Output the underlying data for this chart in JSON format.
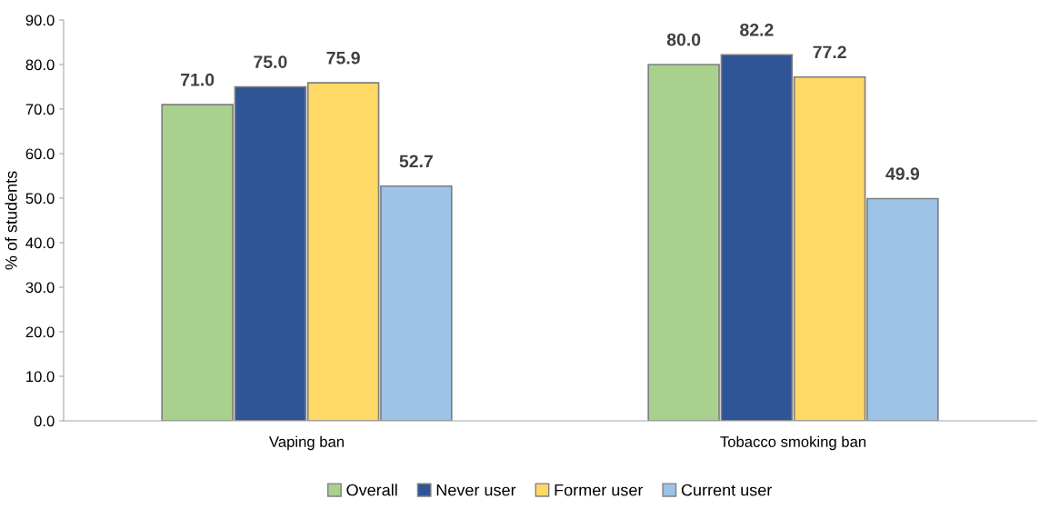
{
  "chart_data": {
    "type": "bar",
    "ylabel": "% of students",
    "categories": [
      "Vaping ban",
      "Tobacco smoking ban"
    ],
    "series": [
      {
        "name": "Overall",
        "color": "#a9d18e",
        "values": [
          71.0,
          80.0
        ],
        "value_labels": [
          "71.0",
          "80.0"
        ]
      },
      {
        "name": "Never user",
        "color": "#2f5597",
        "values": [
          75.0,
          82.2
        ],
        "value_labels": [
          "75.0",
          "82.2"
        ]
      },
      {
        "name": "Former user",
        "color": "#ffd966",
        "values": [
          75.9,
          77.2
        ],
        "value_labels": [
          "75.9",
          "77.2"
        ]
      },
      {
        "name": "Current user",
        "color": "#9dc3e6",
        "values": [
          52.7,
          49.9
        ],
        "value_labels": [
          "52.7",
          "49.9"
        ]
      }
    ],
    "ylim": [
      0,
      90
    ],
    "yticks": [
      {
        "value": 0,
        "label": "0.0"
      },
      {
        "value": 10,
        "label": "10.0"
      },
      {
        "value": 20,
        "label": "20.0"
      },
      {
        "value": 30,
        "label": "30.0"
      },
      {
        "value": 40,
        "label": "40.0"
      },
      {
        "value": 50,
        "label": "50.0"
      },
      {
        "value": 60,
        "label": "60.0"
      },
      {
        "value": 70,
        "label": "70.0"
      },
      {
        "value": 80,
        "label": "80.0"
      },
      {
        "value": 90,
        "label": "90.0"
      }
    ],
    "grid": false,
    "legend": "bottom"
  }
}
